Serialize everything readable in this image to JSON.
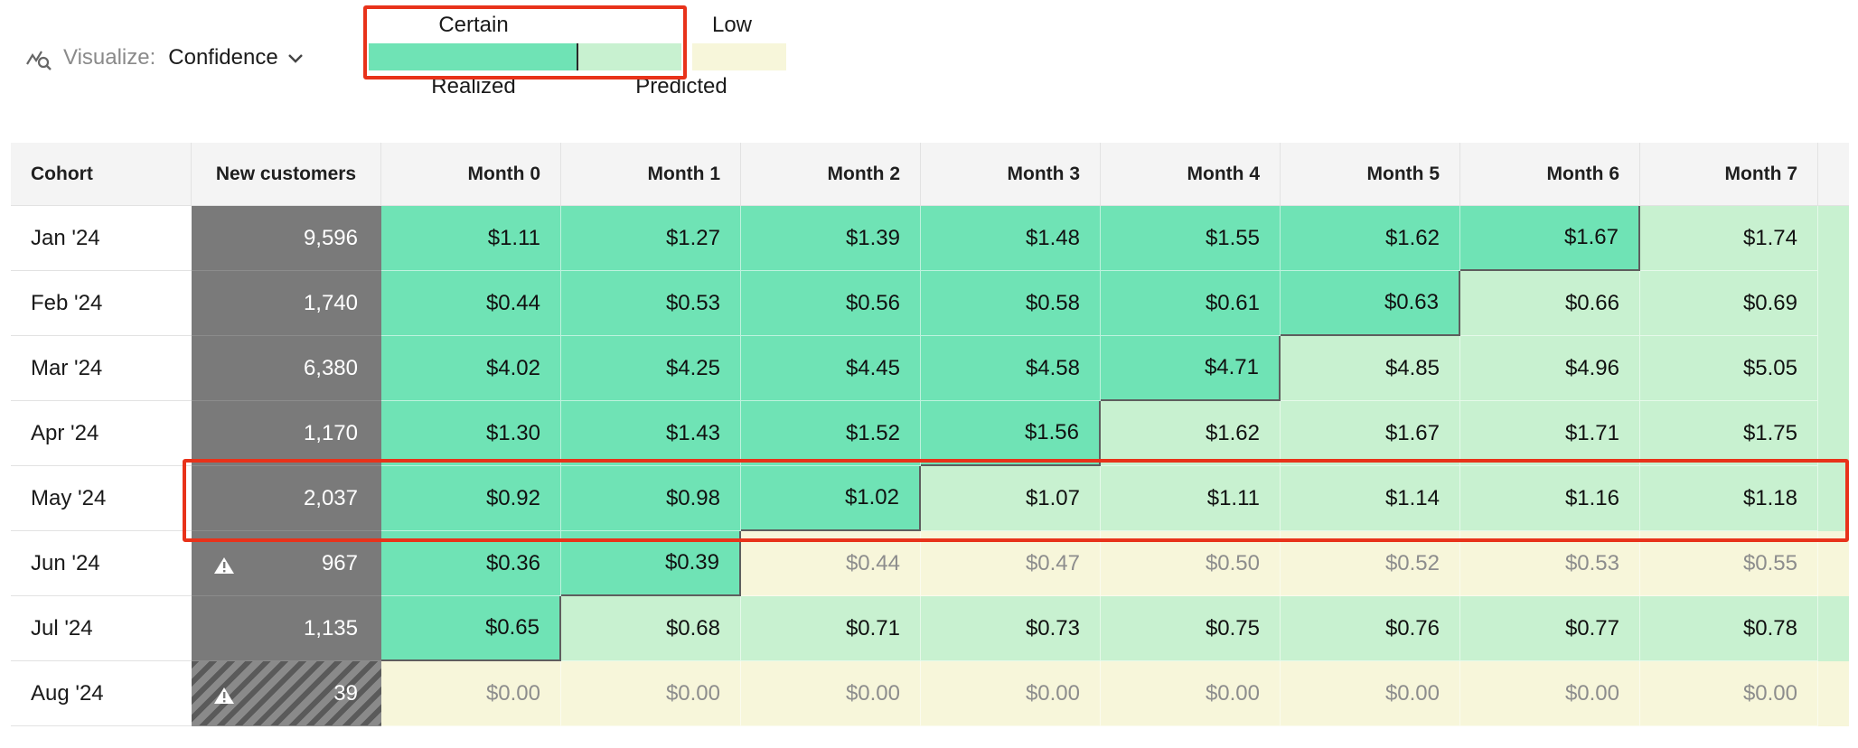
{
  "visualize": {
    "label": "Visualize:",
    "value": "Confidence"
  },
  "legend": {
    "certain": "Certain",
    "low": "Low",
    "realized": "Realized",
    "predicted": "Predicted"
  },
  "colors": {
    "realized": "#6fe3b5",
    "predicted": "#c8f1d0",
    "low": "#f7f6da",
    "new_customers": "#7a7a7a",
    "highlight": "#e8321a"
  },
  "table": {
    "headers": [
      "Cohort",
      "New customers",
      "Month 0",
      "Month 1",
      "Month 2",
      "Month 3",
      "Month 4",
      "Month 5",
      "Month 6",
      "Month 7"
    ],
    "rows": [
      {
        "cohort": "Jan '24",
        "new_customers": "9,596",
        "warning": false,
        "hatched": false,
        "values": [
          "$1.11",
          "$1.27",
          "$1.39",
          "$1.48",
          "$1.55",
          "$1.62",
          "$1.67",
          "$1.74"
        ],
        "state": [
          "r",
          "r",
          "r",
          "r",
          "r",
          "r",
          "r",
          "p"
        ]
      },
      {
        "cohort": "Feb '24",
        "new_customers": "1,740",
        "warning": false,
        "hatched": false,
        "values": [
          "$0.44",
          "$0.53",
          "$0.56",
          "$0.58",
          "$0.61",
          "$0.63",
          "$0.66",
          "$0.69"
        ],
        "state": [
          "r",
          "r",
          "r",
          "r",
          "r",
          "r",
          "p",
          "p"
        ]
      },
      {
        "cohort": "Mar '24",
        "new_customers": "6,380",
        "warning": false,
        "hatched": false,
        "values": [
          "$4.02",
          "$4.25",
          "$4.45",
          "$4.58",
          "$4.71",
          "$4.85",
          "$4.96",
          "$5.05"
        ],
        "state": [
          "r",
          "r",
          "r",
          "r",
          "r",
          "p",
          "p",
          "p"
        ]
      },
      {
        "cohort": "Apr '24",
        "new_customers": "1,170",
        "warning": false,
        "hatched": false,
        "values": [
          "$1.30",
          "$1.43",
          "$1.52",
          "$1.56",
          "$1.62",
          "$1.67",
          "$1.71",
          "$1.75"
        ],
        "state": [
          "r",
          "r",
          "r",
          "r",
          "p",
          "p",
          "p",
          "p"
        ]
      },
      {
        "cohort": "May '24",
        "new_customers": "2,037",
        "warning": false,
        "hatched": false,
        "values": [
          "$0.92",
          "$0.98",
          "$1.02",
          "$1.07",
          "$1.11",
          "$1.14",
          "$1.16",
          "$1.18"
        ],
        "state": [
          "r",
          "r",
          "r",
          "p",
          "p",
          "p",
          "p",
          "p"
        ]
      },
      {
        "cohort": "Jun '24",
        "new_customers": "967",
        "warning": true,
        "hatched": false,
        "values": [
          "$0.36",
          "$0.39",
          "$0.44",
          "$0.47",
          "$0.50",
          "$0.52",
          "$0.53",
          "$0.55"
        ],
        "state": [
          "r",
          "r",
          "l",
          "l",
          "l",
          "l",
          "l",
          "l"
        ]
      },
      {
        "cohort": "Jul '24",
        "new_customers": "1,135",
        "warning": false,
        "hatched": false,
        "values": [
          "$0.65",
          "$0.68",
          "$0.71",
          "$0.73",
          "$0.75",
          "$0.76",
          "$0.77",
          "$0.78"
        ],
        "state": [
          "r",
          "p",
          "p",
          "p",
          "p",
          "p",
          "p",
          "p"
        ]
      },
      {
        "cohort": "Aug '24",
        "new_customers": "39",
        "warning": true,
        "hatched": true,
        "values": [
          "$0.00",
          "$0.00",
          "$0.00",
          "$0.00",
          "$0.00",
          "$0.00",
          "$0.00",
          "$0.00"
        ],
        "state": [
          "l",
          "l",
          "l",
          "l",
          "l",
          "l",
          "l",
          "l"
        ]
      }
    ]
  }
}
